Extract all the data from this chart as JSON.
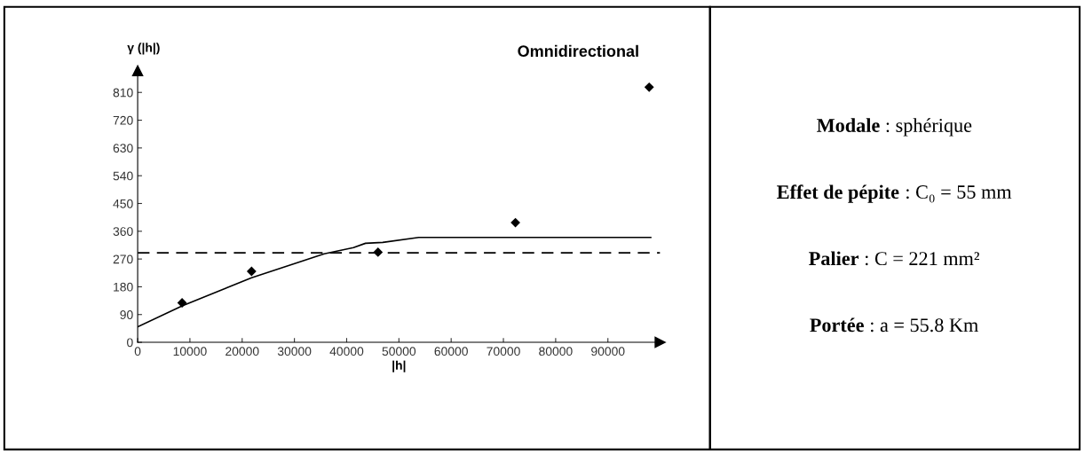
{
  "chart_data": [
    {
      "type": "scatter",
      "title": "Omnidirectional",
      "xlabel": "|h|",
      "ylabel": "γ (|h|)",
      "xlim": [
        0,
        100000
      ],
      "ylim": [
        0,
        880
      ],
      "xticks": [
        0,
        10000,
        20000,
        30000,
        40000,
        50000,
        60000,
        70000,
        80000,
        90000
      ],
      "yticks": [
        0,
        90,
        180,
        270,
        360,
        450,
        540,
        630,
        720,
        810
      ],
      "grid": false,
      "legend": false,
      "marker": "diamond",
      "series": [
        {
          "type": "scatter",
          "color": "#000000",
          "x": [
            8500,
            21800,
            46000,
            72300,
            97900
          ],
          "values": [
            128,
            230,
            292,
            388,
            827
          ]
        },
        {
          "type": "line",
          "color": "#000000",
          "line_style": "solid",
          "marker": "none",
          "x": [
            0,
            8500,
            21800,
            35700,
            41300,
            43600,
            46900,
            53800,
            98200
          ],
          "values": [
            50,
            118,
            209,
            287,
            307,
            321,
            324,
            340,
            340
          ]
        }
      ],
      "ref_lines": [
        {
          "axis": "y",
          "value": 290,
          "line_style": "dashed",
          "color": "#000000"
        }
      ]
    },
    {
      "type": "other",
      "annotations": [
        "Modale : sphérique",
        "Effet de pépite : C₀ = 55 mm",
        "Palier : C = 221 mm²",
        "Portée : a = 55.8 Km"
      ]
    }
  ]
}
